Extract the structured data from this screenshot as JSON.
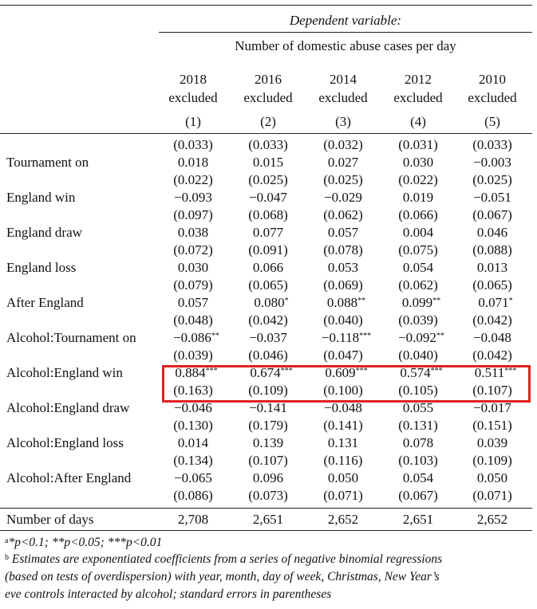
{
  "header": {
    "dep_var": "Dependent variable:",
    "dep_name": "Number of domestic abuse cases per day"
  },
  "columns": [
    {
      "year": "2018",
      "sub": "excluded",
      "num": "(1)"
    },
    {
      "year": "2016",
      "sub": "excluded",
      "num": "(2)"
    },
    {
      "year": "2014",
      "sub": "excluded",
      "num": "(3)"
    },
    {
      "year": "2012",
      "sub": "excluded",
      "num": "(4)"
    },
    {
      "year": "2010",
      "sub": "excluded",
      "num": "(5)"
    }
  ],
  "top_se": [
    "(0.033)",
    "(0.033)",
    "(0.032)",
    "(0.031)",
    "(0.033)"
  ],
  "rows": [
    {
      "label": "Tournament on",
      "coef": [
        "0.018",
        "0.015",
        "0.027",
        "0.030",
        "−0.003"
      ],
      "stars": [
        "",
        "",
        "",
        "",
        ""
      ],
      "se": [
        "(0.022)",
        "(0.025)",
        "(0.025)",
        "(0.022)",
        "(0.025)"
      ]
    },
    {
      "label": "England win",
      "coef": [
        "−0.093",
        "−0.047",
        "−0.029",
        "0.019",
        "−0.051"
      ],
      "stars": [
        "",
        "",
        "",
        "",
        ""
      ],
      "se": [
        "(0.097)",
        "(0.068)",
        "(0.062)",
        "(0.066)",
        "(0.067)"
      ]
    },
    {
      "label": "England draw",
      "coef": [
        "0.038",
        "0.077",
        "0.057",
        "0.004",
        "0.046"
      ],
      "stars": [
        "",
        "",
        "",
        "",
        ""
      ],
      "se": [
        "(0.072)",
        "(0.091)",
        "(0.078)",
        "(0.075)",
        "(0.088)"
      ]
    },
    {
      "label": "England loss",
      "coef": [
        "0.030",
        "0.066",
        "0.053",
        "0.054",
        "0.013"
      ],
      "stars": [
        "",
        "",
        "",
        "",
        ""
      ],
      "se": [
        "(0.079)",
        "(0.065)",
        "(0.069)",
        "(0.062)",
        "(0.065)"
      ]
    },
    {
      "label": "After England",
      "coef": [
        "0.057",
        "0.080",
        "0.088",
        "0.099",
        "0.071"
      ],
      "stars": [
        "",
        "*",
        "**",
        "**",
        "*"
      ],
      "se": [
        "(0.048)",
        "(0.042)",
        "(0.040)",
        "(0.039)",
        "(0.042)"
      ]
    },
    {
      "label": "Alcohol:Tournament on",
      "coef": [
        "−0.086",
        "−0.037",
        "−0.118",
        "−0.092",
        "−0.048"
      ],
      "stars": [
        "**",
        "",
        "***",
        "**",
        ""
      ],
      "se": [
        "(0.039)",
        "(0.046)",
        "(0.047)",
        "(0.040)",
        "(0.042)"
      ]
    },
    {
      "label": "Alcohol:England win",
      "coef": [
        "0.884",
        "0.674",
        "0.609",
        "0.574",
        "0.511"
      ],
      "stars": [
        "***",
        "***",
        "***",
        "***",
        "***"
      ],
      "se": [
        "(0.163)",
        "(0.109)",
        "(0.100)",
        "(0.105)",
        "(0.107)"
      ]
    },
    {
      "label": "Alcohol:England draw",
      "coef": [
        "−0.046",
        "−0.141",
        "−0.048",
        "0.055",
        "−0.017"
      ],
      "stars": [
        "",
        "",
        "",
        "",
        ""
      ],
      "se": [
        "(0.130)",
        "(0.179)",
        "(0.141)",
        "(0.131)",
        "(0.151)"
      ]
    },
    {
      "label": "Alcohol:England loss",
      "coef": [
        "0.014",
        "0.139",
        "0.131",
        "0.078",
        "0.039"
      ],
      "stars": [
        "",
        "",
        "",
        "",
        ""
      ],
      "se": [
        "(0.134)",
        "(0.107)",
        "(0.116)",
        "(0.103)",
        "(0.109)"
      ]
    },
    {
      "label": "Alcohol:After England",
      "coef": [
        "−0.065",
        "0.096",
        "0.050",
        "0.054",
        "0.050"
      ],
      "stars": [
        "",
        "",
        "",
        "",
        ""
      ],
      "se": [
        "(0.086)",
        "(0.073)",
        "(0.071)",
        "(0.067)",
        "(0.071)"
      ]
    }
  ],
  "footer": {
    "label": "Number of days",
    "values": [
      "2,708",
      "2,651",
      "2,652",
      "2,651",
      "2,652"
    ]
  },
  "notes": {
    "a_mark": "a",
    "a_text": "*p<0.1; **p<0.05; ***p<0.01",
    "b_mark": "b",
    "b_line1": "Estimates are exponentiated coefficients from a series of negative binomial regressions",
    "b_line2": "(based on tests of overdispersion) with year, month, day of week, Christmas, New Year’s",
    "b_line3": "eve controls interacted by alcohol; standard errors in parentheses"
  },
  "highlight_color": "#e02020"
}
